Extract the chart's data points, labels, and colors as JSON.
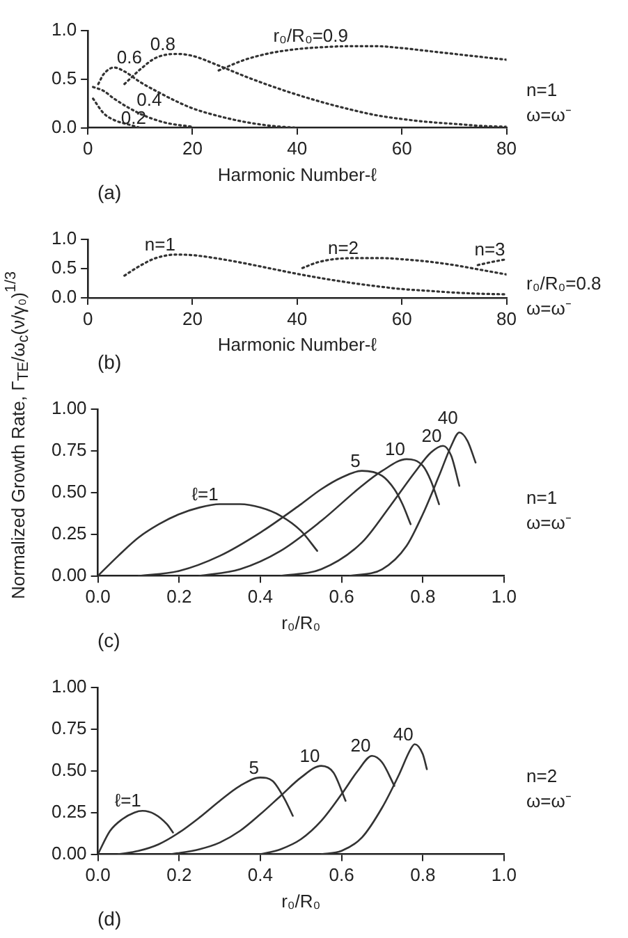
{
  "chart_data": [
    {
      "type": "line",
      "xlabel": "Harmonic Number-ℓ",
      "xlim": [
        0,
        80
      ],
      "xticks": [
        0,
        20,
        40,
        60,
        80
      ],
      "ylim": [
        0,
        1
      ],
      "yticks": [
        {
          "value": 0,
          "label": "0.0"
        },
        {
          "value": 0.5,
          "label": "0.5"
        },
        {
          "value": 1,
          "label": "1.0"
        }
      ],
      "line_style": "dotted",
      "marker": "none",
      "grid": false,
      "legend": false,
      "annotations": [
        "(a)",
        "n=1",
        "ω=ω⁻"
      ],
      "series": [
        {
          "name": "0.2",
          "color": "#333333",
          "x": [
            1,
            3,
            5,
            8,
            10
          ],
          "values": [
            0.3,
            0.15,
            0.08,
            0.03,
            0
          ]
        },
        {
          "name": "0.4",
          "color": "#333333",
          "x": [
            1,
            3,
            5,
            8,
            11,
            15,
            20
          ],
          "values": [
            0.42,
            0.38,
            0.3,
            0.2,
            0.12,
            0.05,
            0.01
          ]
        },
        {
          "name": "0.6",
          "color": "#333333",
          "x": [
            2,
            3,
            5,
            7,
            10,
            13,
            17,
            20,
            25,
            30,
            35,
            40
          ],
          "values": [
            0.45,
            0.55,
            0.62,
            0.58,
            0.47,
            0.38,
            0.27,
            0.2,
            0.12,
            0.06,
            0.02,
            0
          ]
        },
        {
          "name": "0.8",
          "color": "#333333",
          "x": [
            7,
            10,
            13,
            17,
            20,
            25,
            30,
            35,
            40,
            45,
            50,
            55,
            60,
            65,
            70,
            75,
            80
          ],
          "values": [
            0.45,
            0.6,
            0.72,
            0.76,
            0.74,
            0.64,
            0.53,
            0.43,
            0.34,
            0.26,
            0.19,
            0.13,
            0.09,
            0.06,
            0.04,
            0.02,
            0.01
          ]
        },
        {
          "name": "r₀/R₀=0.9",
          "color": "#333333",
          "x": [
            25,
            30,
            35,
            40,
            45,
            50,
            55,
            60,
            65,
            70,
            75,
            80
          ],
          "values": [
            0.59,
            0.7,
            0.77,
            0.81,
            0.83,
            0.84,
            0.84,
            0.82,
            0.79,
            0.76,
            0.73,
            0.7
          ]
        }
      ]
    },
    {
      "type": "line",
      "xlabel": "Harmonic Number-ℓ",
      "xlim": [
        0,
        80
      ],
      "xticks": [
        0,
        20,
        40,
        60,
        80
      ],
      "ylim": [
        0,
        1
      ],
      "yticks": [
        {
          "value": 0,
          "label": "0.0"
        },
        {
          "value": 0.5,
          "label": "0.5"
        },
        {
          "value": 1,
          "label": "1.0"
        }
      ],
      "line_style": "dotted",
      "marker": "none",
      "grid": false,
      "legend": false,
      "annotations": [
        "(b)",
        "r₀/R₀=0.8",
        "ω=ω⁻"
      ],
      "series": [
        {
          "name": "n=1",
          "color": "#333333",
          "x": [
            7,
            10,
            13,
            17,
            20,
            25,
            30,
            35,
            40,
            45,
            50,
            55,
            60,
            65,
            70,
            75,
            80
          ],
          "values": [
            0.38,
            0.55,
            0.68,
            0.74,
            0.73,
            0.67,
            0.59,
            0.5,
            0.41,
            0.33,
            0.26,
            0.2,
            0.15,
            0.12,
            0.09,
            0.07,
            0.06
          ]
        },
        {
          "name": "n=2",
          "color": "#333333",
          "x": [
            41,
            44,
            48,
            52,
            56,
            60,
            65,
            70,
            75,
            80
          ],
          "values": [
            0.51,
            0.61,
            0.67,
            0.68,
            0.68,
            0.66,
            0.62,
            0.56,
            0.48,
            0.4
          ]
        },
        {
          "name": "n=3",
          "color": "#333333",
          "x": [
            74.5,
            77,
            80
          ],
          "values": [
            0.56,
            0.61,
            0.66
          ]
        }
      ]
    },
    {
      "type": "line",
      "xlabel": "r₀/R₀",
      "ylabel": "Normalized Growth Rate, Γ$_{TE}$/ω$_{c}$(ν/γ₀)$^{1/3}$",
      "xlim": [
        0,
        1
      ],
      "xticks": [
        {
          "value": 0,
          "label": "0.0"
        },
        {
          "value": 0.2,
          "label": "0.2"
        },
        {
          "value": 0.4,
          "label": "0.4"
        },
        {
          "value": 0.6,
          "label": "0.6"
        },
        {
          "value": 0.8,
          "label": "0.8"
        },
        {
          "value": 1,
          "label": "1.0"
        }
      ],
      "ylim": [
        0,
        1
      ],
      "yticks": [
        {
          "value": 0,
          "label": "0.00"
        },
        {
          "value": 0.25,
          "label": "0.25"
        },
        {
          "value": 0.5,
          "label": "0.50"
        },
        {
          "value": 0.75,
          "label": "0.75"
        },
        {
          "value": 1,
          "label": "1.00"
        }
      ],
      "line_style": "solid",
      "marker": "none",
      "grid": false,
      "legend": false,
      "annotations": [
        "(c)",
        "n=1",
        "ω=ω⁻"
      ],
      "series": [
        {
          "name": "ℓ=1",
          "color": "#333333",
          "x": [
            0,
            0.05,
            0.1,
            0.15,
            0.2,
            0.25,
            0.3,
            0.35,
            0.4,
            0.45,
            0.5,
            0.54
          ],
          "values": [
            0,
            0.12,
            0.23,
            0.31,
            0.37,
            0.41,
            0.43,
            0.43,
            0.41,
            0.36,
            0.27,
            0.15
          ]
        },
        {
          "name": "5",
          "color": "#333333",
          "x": [
            0.1,
            0.2,
            0.3,
            0.4,
            0.5,
            0.55,
            0.6,
            0.65,
            0.7,
            0.73,
            0.75,
            0.77
          ],
          "values": [
            0,
            0.03,
            0.12,
            0.26,
            0.43,
            0.52,
            0.59,
            0.63,
            0.6,
            0.52,
            0.43,
            0.31
          ]
        },
        {
          "name": "10",
          "color": "#333333",
          "x": [
            0.25,
            0.35,
            0.45,
            0.55,
            0.65,
            0.7,
            0.76,
            0.8,
            0.82,
            0.84
          ],
          "values": [
            0,
            0.04,
            0.15,
            0.33,
            0.54,
            0.63,
            0.7,
            0.66,
            0.57,
            0.43
          ]
        },
        {
          "name": "20",
          "color": "#333333",
          "x": [
            0.45,
            0.55,
            0.65,
            0.72,
            0.78,
            0.82,
            0.85,
            0.87,
            0.89
          ],
          "values": [
            0,
            0.04,
            0.2,
            0.42,
            0.62,
            0.74,
            0.78,
            0.72,
            0.54
          ]
        },
        {
          "name": "40",
          "color": "#333333",
          "x": [
            0.62,
            0.7,
            0.76,
            0.8,
            0.84,
            0.87,
            0.89,
            0.91,
            0.93
          ],
          "values": [
            0,
            0.04,
            0.18,
            0.37,
            0.6,
            0.78,
            0.86,
            0.81,
            0.68
          ]
        }
      ]
    },
    {
      "type": "line",
      "xlabel": "r₀/R₀",
      "xlim": [
        0,
        1
      ],
      "xticks": [
        {
          "value": 0,
          "label": "0.0"
        },
        {
          "value": 0.2,
          "label": "0.2"
        },
        {
          "value": 0.4,
          "label": "0.4"
        },
        {
          "value": 0.6,
          "label": "0.6"
        },
        {
          "value": 0.8,
          "label": "0.8"
        },
        {
          "value": 1,
          "label": "1.0"
        }
      ],
      "ylim": [
        0,
        1
      ],
      "yticks": [
        {
          "value": 0,
          "label": "0.00"
        },
        {
          "value": 0.25,
          "label": "0.25"
        },
        {
          "value": 0.5,
          "label": "0.50"
        },
        {
          "value": 0.75,
          "label": "0.75"
        },
        {
          "value": 1,
          "label": "1.00"
        }
      ],
      "line_style": "solid",
      "marker": "none",
      "grid": false,
      "legend": false,
      "annotations": [
        "(d)",
        "n=2",
        "ω=ω⁻"
      ],
      "series": [
        {
          "name": "ℓ=1",
          "color": "#333333",
          "x": [
            0,
            0.03,
            0.06,
            0.09,
            0.11,
            0.14,
            0.17,
            0.185
          ],
          "values": [
            0,
            0.14,
            0.21,
            0.25,
            0.26,
            0.24,
            0.18,
            0.13
          ]
        },
        {
          "name": "5",
          "color": "#333333",
          "x": [
            0.05,
            0.1,
            0.15,
            0.2,
            0.25,
            0.3,
            0.35,
            0.4,
            0.43,
            0.46,
            0.48
          ],
          "values": [
            0,
            0.02,
            0.06,
            0.13,
            0.22,
            0.32,
            0.41,
            0.46,
            0.44,
            0.33,
            0.23
          ]
        },
        {
          "name": "10",
          "color": "#333333",
          "x": [
            0.18,
            0.25,
            0.3,
            0.35,
            0.4,
            0.45,
            0.5,
            0.55,
            0.58,
            0.61
          ],
          "values": [
            0,
            0.03,
            0.07,
            0.14,
            0.24,
            0.35,
            0.46,
            0.53,
            0.49,
            0.32
          ]
        },
        {
          "name": "20",
          "color": "#333333",
          "x": [
            0.4,
            0.45,
            0.5,
            0.55,
            0.6,
            0.64,
            0.675,
            0.7,
            0.73
          ],
          "values": [
            0,
            0.03,
            0.09,
            0.2,
            0.36,
            0.5,
            0.59,
            0.55,
            0.41
          ]
        },
        {
          "name": "40",
          "color": "#333333",
          "x": [
            0.55,
            0.6,
            0.65,
            0.7,
            0.74,
            0.77,
            0.78,
            0.8,
            0.81
          ],
          "values": [
            0,
            0.02,
            0.1,
            0.28,
            0.47,
            0.63,
            0.66,
            0.6,
            0.51
          ]
        }
      ]
    }
  ]
}
